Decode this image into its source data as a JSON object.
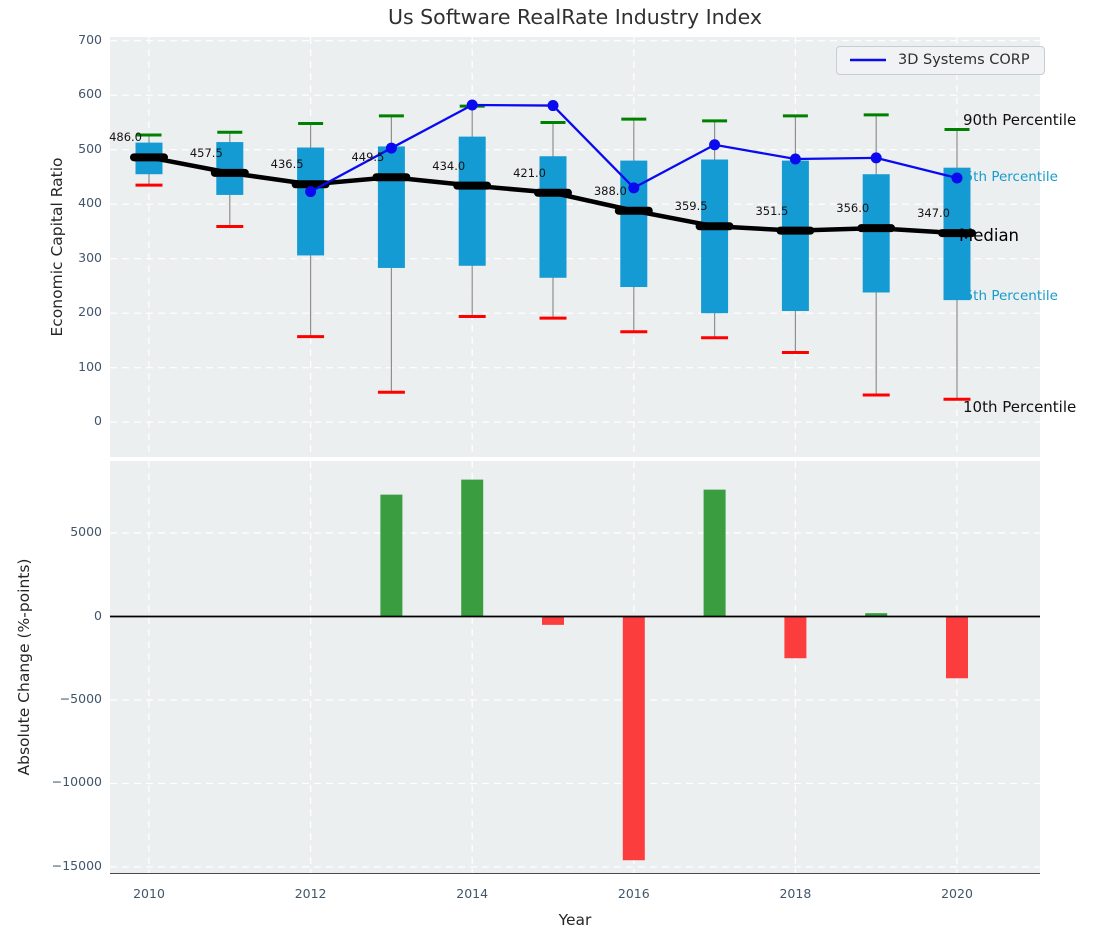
{
  "title": "Us Software RealRate Industry Index",
  "legend": {
    "label": "3D Systems CORP"
  },
  "annotations": {
    "p90": "90th Percentile",
    "p75": "75th Percentile",
    "median": "Median",
    "p25": "25th Percentile",
    "p10": "10th Percentile"
  },
  "colors": {
    "axes_bg": "#eceff0",
    "grid": "#ffffff",
    "box_fill": "#149bd4",
    "whisker": "#8f8f8f",
    "cap_90": "#008000",
    "cap_10": "#ff0000",
    "median_line": "#000000",
    "company_line": "#0a0af0",
    "bar_positive": "#3a9e41",
    "bar_negative": "#fc3d3d",
    "annotation_cyan": "#189bc9",
    "tick_text": "#41566b",
    "zero_line": "#000000"
  },
  "chart_data": [
    {
      "type": "boxplot",
      "title": "Us Software RealRate Industry Index",
      "ylabel": "Economic Capital Ratio",
      "ylim": [
        0,
        700
      ],
      "grid": true,
      "legend_position": "upper right",
      "yticks": [
        700,
        600,
        500,
        400,
        300,
        200,
        100,
        0
      ],
      "ytick_labels": [
        "700",
        "600",
        "500",
        "400",
        "300",
        "200",
        "100",
        "0"
      ],
      "years": [
        2010,
        2011,
        2012,
        2013,
        2014,
        2015,
        2016,
        2017,
        2018,
        2019,
        2020
      ],
      "percentile_90": [
        527,
        532,
        548,
        562,
        580,
        550,
        556,
        553,
        562,
        564,
        537
      ],
      "percentile_75": [
        513,
        514,
        504,
        506,
        524,
        488,
        480,
        482,
        480,
        455,
        467
      ],
      "median": [
        486.0,
        457.5,
        436.5,
        449.5,
        434.0,
        421.0,
        388.0,
        359.5,
        351.5,
        356.0,
        347.0
      ],
      "median_labels": [
        "486.0",
        "457.5",
        "436.5",
        "449.5",
        "434.0",
        "421.0",
        "388.0",
        "359.5",
        "351.5",
        "356.0",
        "347.0"
      ],
      "percentile_25": [
        455,
        417,
        306,
        283,
        287,
        265,
        248,
        200,
        204,
        238,
        224
      ],
      "percentile_10": [
        435,
        359,
        157,
        55,
        194,
        191,
        166,
        155,
        128,
        50,
        42
      ],
      "series": [
        {
          "name": "3D Systems CORP",
          "x": [
            2012,
            2013,
            2014,
            2015,
            2016,
            2017,
            2018,
            2019,
            2020
          ],
          "y": [
            423,
            503,
            582,
            581,
            430,
            509,
            483,
            485,
            448
          ]
        }
      ]
    },
    {
      "type": "bar",
      "xlabel": "Year",
      "ylabel": "Absolute Change (%-points)",
      "grid": true,
      "ylim": [
        -15400,
        9350
      ],
      "years": [
        2010,
        2011,
        2012,
        2013,
        2014,
        2015,
        2016,
        2017,
        2018,
        2019,
        2020
      ],
      "values": [
        null,
        null,
        null,
        7300,
        8200,
        -500,
        -14600,
        7600,
        -2500,
        200,
        -3700
      ],
      "yticks": [
        5000,
        0,
        -5000,
        -10000,
        -15000
      ],
      "ytick_labels": [
        "5000",
        "0",
        "−5000",
        "−10000",
        "−15000"
      ],
      "xticks": [
        2010,
        2012,
        2014,
        2016,
        2018,
        2020
      ],
      "xtick_labels": [
        "2010",
        "2012",
        "2014",
        "2016",
        "2018",
        "2020"
      ]
    }
  ]
}
